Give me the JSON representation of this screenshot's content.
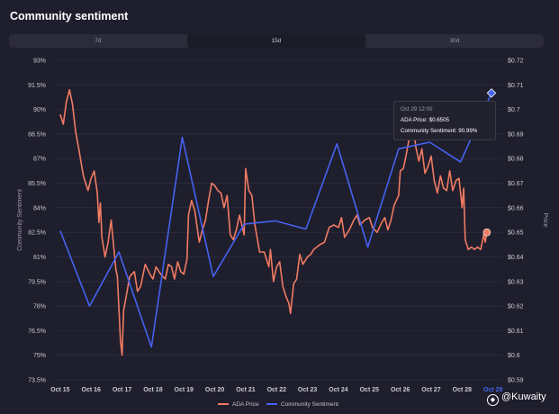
{
  "page_title": "Community sentiment",
  "tabs": [
    "7d",
    "15d",
    "30d"
  ],
  "active_tab": 1,
  "tooltip": {
    "date": "Oct 29 12:00",
    "price_line": "ADA Price: $0.6505",
    "sentiment_line": "Community Sentiment: 90.99%"
  },
  "watermark": "@Kuwaity",
  "colors": {
    "price": "#f07b62",
    "sentiment": "#4462f0",
    "grid": "#33334a",
    "tick": "#c8c8d4"
  },
  "chart_data": {
    "type": "line",
    "x_axis": {
      "min_day": 14.8,
      "max_day": 29.3,
      "tick_days": [
        15,
        16,
        17,
        18,
        19,
        20,
        21,
        22,
        23,
        24,
        25,
        26,
        27,
        28,
        29
      ],
      "tick_labels": [
        "Oct 15",
        "Oct 16",
        "Oct 17",
        "Oct 18",
        "Oct 19",
        "Oct 20",
        "Oct 21",
        "Oct 22",
        "Oct 23",
        "Oct 24",
        "Oct 25",
        "Oct 26",
        "Oct 27",
        "Oct 28",
        "Oct 29"
      ]
    },
    "y_left": {
      "label": "Community Sentiment",
      "min": 73.5,
      "max": 93.0,
      "ticks": [
        "93%",
        "91.5%",
        "90%",
        "88.5%",
        "87%",
        "85.5%",
        "84%",
        "82.5%",
        "81%",
        "79.5%",
        "78%",
        "76.5%",
        "75%",
        "73.5%"
      ]
    },
    "y_right": {
      "label": "Price",
      "min": 0.59,
      "max": 0.72,
      "ticks": [
        "$0.72",
        "$0.71",
        "$0.7",
        "$0.69",
        "$0.68",
        "$0.67",
        "$0.66",
        "$0.65",
        "$0.64",
        "$0.63",
        "$0.62",
        "$0.61",
        "$0.6",
        "$0.59"
      ]
    },
    "series": [
      {
        "name": "ADA Price",
        "axis": "right",
        "color": "#f07b62",
        "points": [
          [
            15.0,
            0.698
          ],
          [
            15.1,
            0.694
          ],
          [
            15.2,
            0.703
          ],
          [
            15.3,
            0.708
          ],
          [
            15.4,
            0.702
          ],
          [
            15.5,
            0.691
          ],
          [
            15.6,
            0.684
          ],
          [
            15.75,
            0.673
          ],
          [
            15.9,
            0.667
          ],
          [
            16.0,
            0.672
          ],
          [
            16.1,
            0.675
          ],
          [
            16.2,
            0.666
          ],
          [
            16.25,
            0.654
          ],
          [
            16.3,
            0.662
          ],
          [
            16.35,
            0.648
          ],
          [
            16.45,
            0.64
          ],
          [
            16.55,
            0.646
          ],
          [
            16.65,
            0.655
          ],
          [
            16.8,
            0.635
          ],
          [
            16.85,
            0.632
          ],
          [
            16.9,
            0.619
          ],
          [
            16.95,
            0.606
          ],
          [
            17.0,
            0.6
          ],
          [
            17.05,
            0.618
          ],
          [
            17.15,
            0.625
          ],
          [
            17.25,
            0.632
          ],
          [
            17.4,
            0.634
          ],
          [
            17.5,
            0.626
          ],
          [
            17.6,
            0.628
          ],
          [
            17.75,
            0.637
          ],
          [
            17.9,
            0.633
          ],
          [
            18.0,
            0.631
          ],
          [
            18.1,
            0.636
          ],
          [
            18.25,
            0.633
          ],
          [
            18.4,
            0.631
          ],
          [
            18.5,
            0.637
          ],
          [
            18.6,
            0.636
          ],
          [
            18.7,
            0.631
          ],
          [
            18.8,
            0.638
          ],
          [
            18.9,
            0.634
          ],
          [
            19.0,
            0.633
          ],
          [
            19.1,
            0.639
          ],
          [
            19.15,
            0.657
          ],
          [
            19.25,
            0.663
          ],
          [
            19.35,
            0.659
          ],
          [
            19.5,
            0.646
          ],
          [
            19.6,
            0.651
          ],
          [
            19.7,
            0.655
          ],
          [
            19.8,
            0.663
          ],
          [
            19.9,
            0.67
          ],
          [
            20.0,
            0.669
          ],
          [
            20.1,
            0.667
          ],
          [
            20.2,
            0.666
          ],
          [
            20.3,
            0.66
          ],
          [
            20.4,
            0.665
          ],
          [
            20.5,
            0.649
          ],
          [
            20.6,
            0.647
          ],
          [
            20.7,
            0.651
          ],
          [
            20.8,
            0.657
          ],
          [
            20.95,
            0.649
          ],
          [
            21.0,
            0.676
          ],
          [
            21.1,
            0.667
          ],
          [
            21.2,
            0.665
          ],
          [
            21.3,
            0.653
          ],
          [
            21.45,
            0.642
          ],
          [
            21.6,
            0.642
          ],
          [
            21.75,
            0.636
          ],
          [
            21.8,
            0.643
          ],
          [
            21.9,
            0.63
          ],
          [
            22.0,
            0.636
          ],
          [
            22.1,
            0.638
          ],
          [
            22.2,
            0.628
          ],
          [
            22.3,
            0.624
          ],
          [
            22.4,
            0.621
          ],
          [
            22.45,
            0.617
          ],
          [
            22.55,
            0.629
          ],
          [
            22.65,
            0.631
          ],
          [
            22.75,
            0.641
          ],
          [
            22.85,
            0.637
          ],
          [
            23.0,
            0.64
          ],
          [
            23.1,
            0.641
          ],
          [
            23.2,
            0.643
          ],
          [
            23.4,
            0.645
          ],
          [
            23.55,
            0.646
          ],
          [
            23.7,
            0.652
          ],
          [
            23.85,
            0.653
          ],
          [
            24.0,
            0.652
          ],
          [
            24.1,
            0.656
          ],
          [
            24.2,
            0.648
          ],
          [
            24.35,
            0.651
          ],
          [
            24.5,
            0.655
          ],
          [
            24.6,
            0.657
          ],
          [
            24.7,
            0.653
          ],
          [
            24.85,
            0.655
          ],
          [
            25.0,
            0.656
          ],
          [
            25.1,
            0.652
          ],
          [
            25.25,
            0.65
          ],
          [
            25.4,
            0.654
          ],
          [
            25.5,
            0.656
          ],
          [
            25.6,
            0.651
          ],
          [
            25.7,
            0.655
          ],
          [
            25.8,
            0.661
          ],
          [
            25.95,
            0.665
          ],
          [
            26.0,
            0.675
          ],
          [
            26.1,
            0.676
          ],
          [
            26.2,
            0.682
          ],
          [
            26.3,
            0.689
          ],
          [
            26.4,
            0.697
          ],
          [
            26.5,
            0.685
          ],
          [
            26.6,
            0.679
          ],
          [
            26.7,
            0.684
          ],
          [
            26.8,
            0.674
          ],
          [
            26.9,
            0.677
          ],
          [
            27.0,
            0.681
          ],
          [
            27.1,
            0.671
          ],
          [
            27.2,
            0.666
          ],
          [
            27.3,
            0.673
          ],
          [
            27.4,
            0.668
          ],
          [
            27.5,
            0.667
          ],
          [
            27.6,
            0.675
          ],
          [
            27.7,
            0.667
          ],
          [
            27.8,
            0.671
          ],
          [
            27.9,
            0.672
          ],
          [
            28.0,
            0.66
          ],
          [
            28.05,
            0.668
          ],
          [
            28.1,
            0.647
          ],
          [
            28.2,
            0.643
          ],
          [
            28.3,
            0.644
          ],
          [
            28.4,
            0.643
          ],
          [
            28.5,
            0.644
          ],
          [
            28.6,
            0.643
          ],
          [
            28.7,
            0.649
          ],
          [
            28.75,
            0.646
          ],
          [
            28.8,
            0.65
          ]
        ]
      },
      {
        "name": "Community Sentiment",
        "axis": "left",
        "color": "#4462f0",
        "points": [
          [
            15.0,
            82.6
          ],
          [
            15.95,
            78.0
          ],
          [
            16.9,
            81.3
          ],
          [
            17.95,
            75.5
          ],
          [
            18.95,
            88.3
          ],
          [
            19.95,
            79.8
          ],
          [
            20.95,
            83.0
          ],
          [
            21.95,
            83.2
          ],
          [
            22.95,
            82.7
          ],
          [
            23.95,
            87.9
          ],
          [
            24.95,
            81.6
          ],
          [
            25.95,
            87.6
          ],
          [
            26.95,
            88.0
          ],
          [
            27.95,
            86.8
          ],
          [
            28.95,
            91.0
          ]
        ]
      }
    ],
    "legend": [
      "ADA Price",
      "Community Sentiment"
    ]
  }
}
